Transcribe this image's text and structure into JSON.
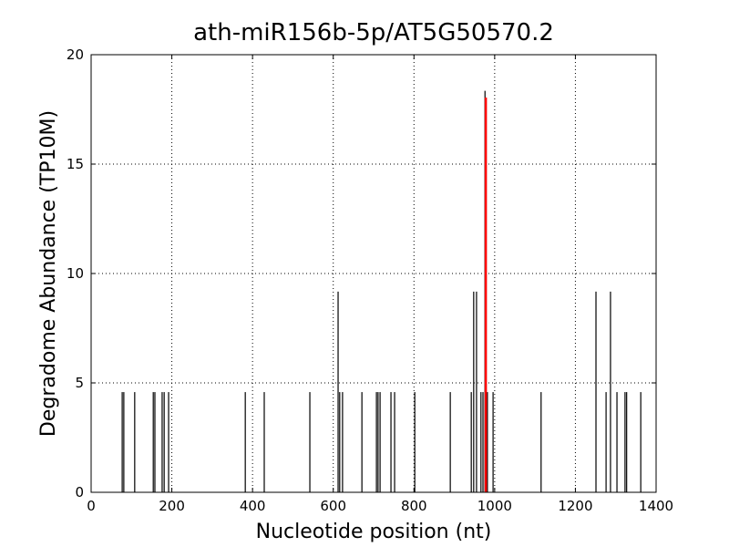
{
  "chart_data": {
    "type": "stem",
    "title": "ath-miR156b-5p/AT5G50570.2",
    "x_label": "Nucleotide position (nt)",
    "y_label": "Degradome Abundance (TP10M)",
    "xlim": [
      0,
      1400
    ],
    "ylim": [
      0,
      20
    ],
    "xticks": [
      0,
      200,
      400,
      600,
      800,
      1000,
      1200,
      1400
    ],
    "yticks": [
      0,
      5,
      10,
      15,
      20
    ],
    "grid": true,
    "series": [
      {
        "color": "#000000",
        "x": [
          77,
          81,
          108,
          154,
          158,
          176,
          181,
          192,
          382,
          429,
          542,
          612,
          616,
          623,
          671,
          707,
          711,
          716,
          743,
          752,
          802,
          890,
          942,
          948,
          955,
          966,
          971,
          976,
          982,
          996,
          1115,
          1251,
          1276,
          1287,
          1303,
          1323,
          1327,
          1362
        ],
        "values": [
          4.58,
          4.58,
          4.58,
          4.58,
          4.58,
          4.58,
          4.58,
          4.58,
          4.58,
          4.58,
          4.58,
          9.17,
          4.58,
          4.58,
          4.58,
          4.58,
          4.58,
          4.58,
          4.58,
          4.58,
          4.58,
          4.58,
          4.58,
          9.17,
          9.17,
          4.58,
          4.58,
          18.35,
          4.58,
          4.58,
          4.58,
          9.17,
          4.58,
          9.17,
          4.58,
          4.58,
          4.58,
          4.58
        ]
      },
      {
        "color": "#ff0000",
        "x": [
          978
        ],
        "values": [
          18.04
        ]
      }
    ]
  }
}
